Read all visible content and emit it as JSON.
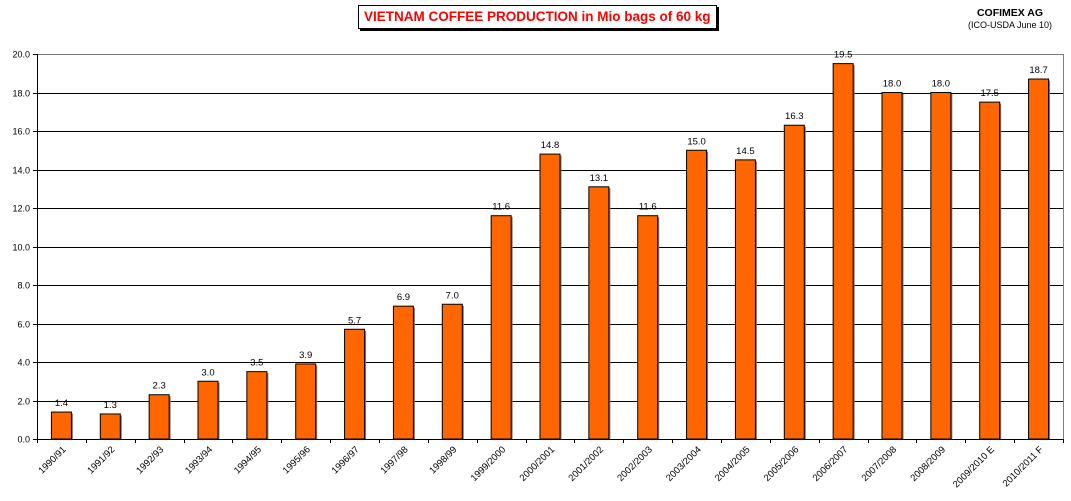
{
  "header": {
    "title": "VIETNAM COFFEE PRODUCTION  in Mio bags of 60 kg",
    "source_name": "COFIMEX AG",
    "source_note": "(ICO-USDA June 10)"
  },
  "colors": {
    "bar": "#ff6600",
    "title": "#ff0000"
  },
  "chart_data": {
    "type": "bar",
    "title": "VIETNAM COFFEE PRODUCTION  in Mio bags of 60 kg",
    "subtitle": "COFIMEX AG (ICO-USDA June 10)",
    "xlabel": "",
    "ylabel": "",
    "ylim": [
      0,
      20
    ],
    "yticks": [
      "0.0",
      "2.0",
      "4.0",
      "6.0",
      "8.0",
      "10.0",
      "12.0",
      "14.0",
      "16.0",
      "18.0",
      "20.0"
    ],
    "grid": true,
    "legend": null,
    "categories": [
      "1990/91",
      "1991/92",
      "1992/93",
      "1993/94",
      "1994/95",
      "1995/96",
      "1996/97",
      "1997/98",
      "1998/99",
      "1999/2000",
      "2000/2001",
      "2001/2002",
      "2002/2003",
      "2003/2004",
      "2004/2005",
      "2005/2006",
      "2006/2007",
      "2007/2008",
      "2008/2009",
      "2009/2010 E",
      "2010/2011 F"
    ],
    "values": [
      1.4,
      1.3,
      2.3,
      3.0,
      3.5,
      3.9,
      5.7,
      6.9,
      7.0,
      11.6,
      14.8,
      13.1,
      11.6,
      15.0,
      14.5,
      16.3,
      19.5,
      18.0,
      18.0,
      17.5,
      18.7
    ],
    "value_labels": [
      "1.4",
      "1.3",
      "2.3",
      "3.0",
      "3.5",
      "3.9",
      "5.7",
      "6.9",
      "7.0",
      "11.6",
      "14.8",
      "13.1",
      "11.6",
      "15.0",
      "14.5",
      "16.3",
      "19.5",
      "18.0",
      "18.0",
      "17.5",
      "18.7"
    ]
  }
}
